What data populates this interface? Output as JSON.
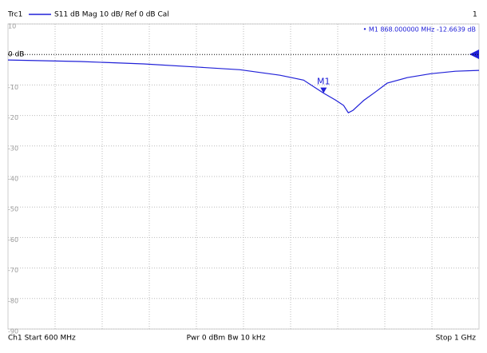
{
  "chart_data": {
    "type": "line",
    "trace_label": "Trc1",
    "window_number": "1",
    "x": [
      600,
      661,
      715,
      763,
      797,
      831,
      851,
      868,
      878,
      885,
      889,
      893,
      902,
      912,
      922,
      939,
      959,
      980,
      1000
    ],
    "series": [
      {
        "name": "S11  dB Mag  10 dB/ Ref 0 dB  Cal",
        "color": "#2020d8",
        "values": [
          -1.8,
          -2.3,
          -3.1,
          -4.2,
          -5.0,
          -6.8,
          -8.4,
          -12.6639,
          -14.9,
          -16.7,
          -19.1,
          -18.3,
          -15.1,
          -12.3,
          -9.4,
          -7.6,
          -6.3,
          -5.5,
          -5.2
        ]
      }
    ],
    "xlim": [
      600,
      1000
    ],
    "ylim": [
      -90,
      10
    ],
    "yticks": [
      10,
      {
        "value": 0,
        "label": "0 dB"
      },
      -10,
      -20,
      -30,
      -40,
      -50,
      -60,
      -70,
      -80,
      -90
    ],
    "grid": true,
    "marker": {
      "label": "M1",
      "x": 868,
      "y": -12.6639,
      "readout": "• M1  868.000000  MHz  -12.6639  dB"
    },
    "footer": [
      "Ch1  Start  600 MHz",
      "Pwr  0 dBm  Bw  10 kHz",
      "Stop  1 GHz"
    ]
  }
}
